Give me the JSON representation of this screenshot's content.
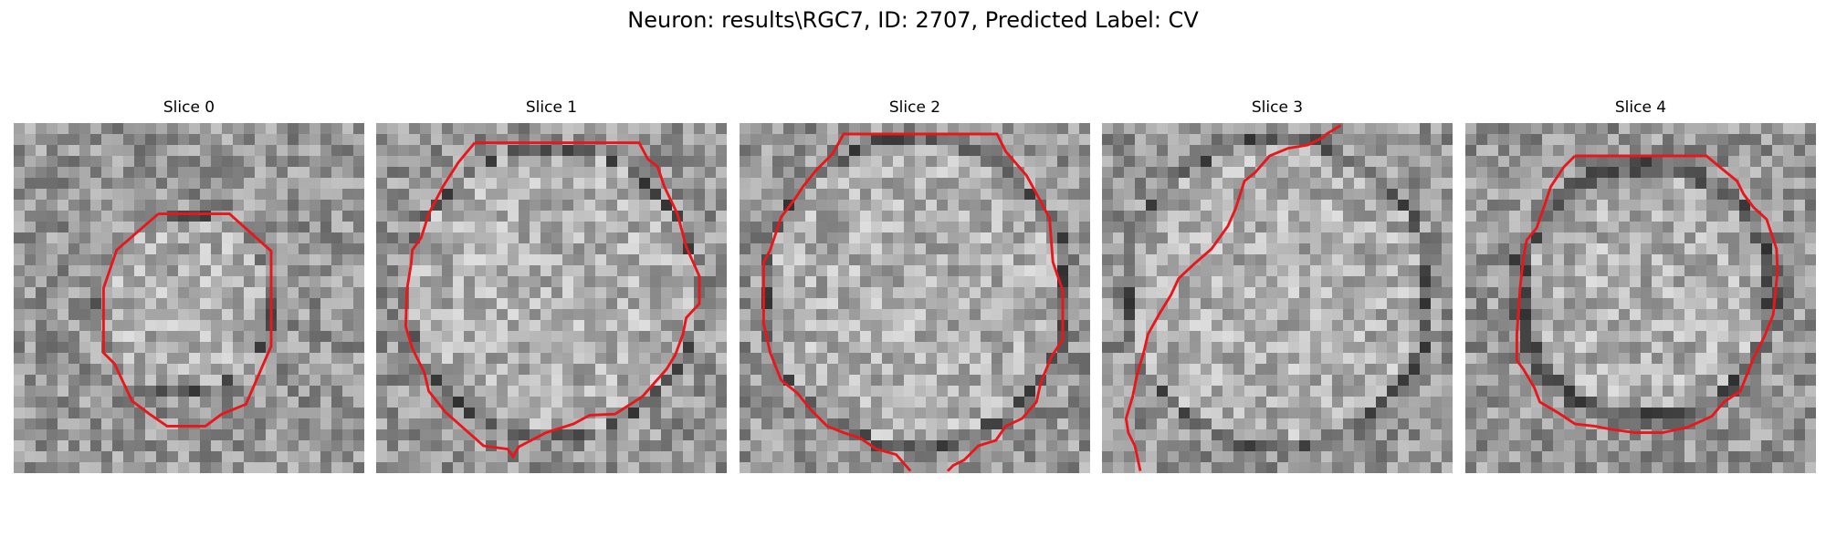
{
  "figure": {
    "title": "Neuron: results\\RGC7, ID: 2707, Predicted Label: CV",
    "contour_color": "#e8171b"
  },
  "panels": [
    {
      "title": "Slice 0"
    },
    {
      "title": "Slice 1"
    },
    {
      "title": "Slice 2"
    },
    {
      "title": "Slice 3"
    },
    {
      "title": "Slice 4"
    }
  ]
}
